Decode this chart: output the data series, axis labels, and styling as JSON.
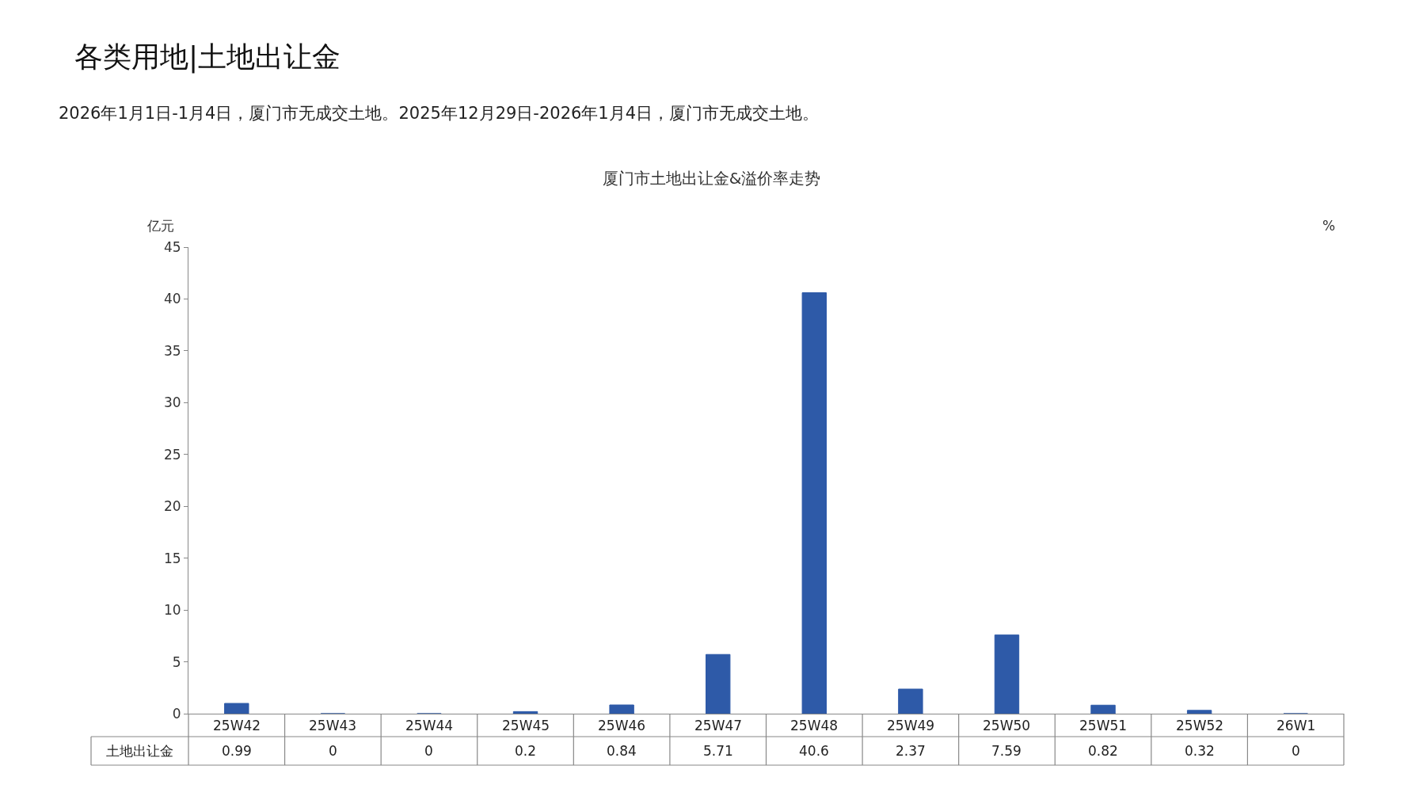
{
  "chart_data": {
    "type": "bar",
    "title": "厦门市土地出让金&溢价率走势",
    "ylabel": "亿元",
    "y2label": "%",
    "annotations": [
      "各类用地|土地出让金",
      "2026年1月1日-1月4日，厦门市无成交土地。2025年12月29日-2026年1月4日，厦门市无成交土地。"
    ],
    "categories": [
      "25W42",
      "25W43",
      "25W44",
      "25W45",
      "25W46",
      "25W47",
      "25W48",
      "25W49",
      "25W50",
      "25W51",
      "25W52",
      "26W1"
    ],
    "series": [
      {
        "name": "土地出让金",
        "color": "#2e5aa8",
        "values": [
          0.99,
          0,
          0,
          0.2,
          0.84,
          5.71,
          40.6,
          2.37,
          7.59,
          0.82,
          0.32,
          0
        ]
      }
    ],
    "ylim": [
      0,
      45
    ],
    "yticks": [
      0,
      5,
      10,
      15,
      20,
      25,
      30,
      35,
      40,
      45
    ],
    "legend": false,
    "data_labels": true
  }
}
